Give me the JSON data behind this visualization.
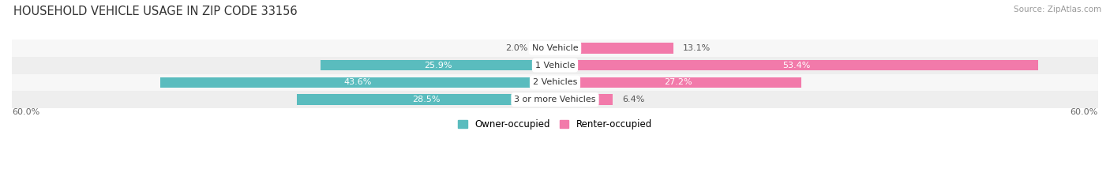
{
  "title": "HOUSEHOLD VEHICLE USAGE IN ZIP CODE 33156",
  "source": "Source: ZipAtlas.com",
  "categories": [
    "No Vehicle",
    "1 Vehicle",
    "2 Vehicles",
    "3 or more Vehicles"
  ],
  "owner_values": [
    2.0,
    25.9,
    43.6,
    28.5
  ],
  "renter_values": [
    13.1,
    53.4,
    27.2,
    6.4
  ],
  "owner_color": "#5abcbe",
  "renter_color": "#f27aaa",
  "row_bg_colors": [
    "#f7f7f7",
    "#eeeeee"
  ],
  "axis_max": 60.0,
  "axis_label_left": "60.0%",
  "axis_label_right": "60.0%",
  "title_fontsize": 10.5,
  "label_fontsize": 8.0,
  "category_fontsize": 8.0,
  "legend_fontsize": 8.5,
  "source_fontsize": 7.5,
  "owner_threshold": 10,
  "renter_threshold": 20
}
